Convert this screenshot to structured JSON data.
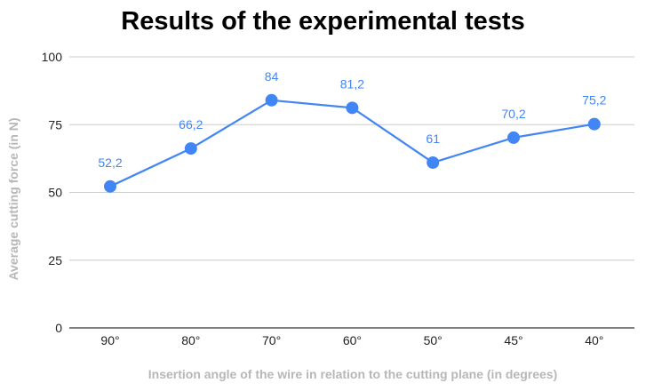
{
  "chart_data": {
    "type": "line",
    "title": "Results of the experimental tests",
    "xlabel": "Insertion angle of the wire in relation to the cutting plane (in degrees)",
    "ylabel": "Average cutting force (in N)",
    "categories": [
      "90°",
      "80°",
      "70°",
      "60°",
      "50°",
      "45°",
      "40°"
    ],
    "series": [
      {
        "values": [
          52.2,
          66.2,
          84,
          81.2,
          61,
          70.2,
          75.2
        ],
        "labels": [
          "52,2",
          "66,2",
          "84",
          "81,2",
          "61",
          "70,2",
          "75,2"
        ],
        "color": "#4285f4"
      }
    ],
    "ylim": [
      0,
      100
    ],
    "yticks": [
      0,
      25,
      50,
      75,
      100
    ],
    "ytick_labels": [
      "0",
      "25",
      "50",
      "75",
      "100"
    ],
    "grid": true,
    "legend": "none",
    "gridline_color": "#cccccc",
    "axis_color": "#333333"
  }
}
